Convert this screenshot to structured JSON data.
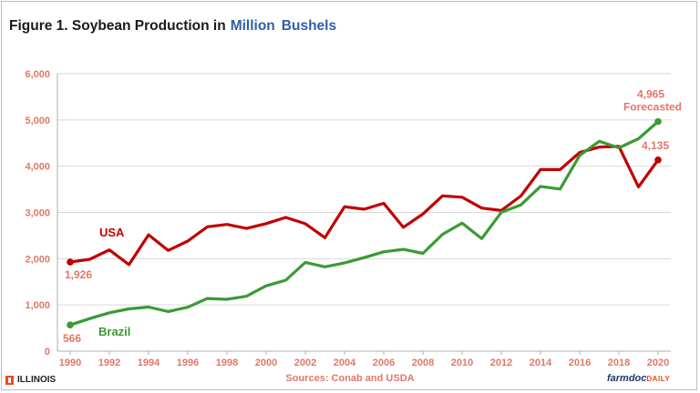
{
  "title": {
    "prefix": "Figure 1. Soybean Production in",
    "highlight1": "Million",
    "highlight2": "Bushels"
  },
  "footer": {
    "logo_text": "ILLINOIS",
    "source": "Sources: Conab and USDA",
    "brand_main": "farmdoc",
    "brand_suffix": "DAILY"
  },
  "colors": {
    "usa": "#c00000",
    "brazil": "#3a9a35",
    "axis_text": "#e0776a",
    "grid": "#d9d9d9",
    "axis": "#b0b0b0"
  },
  "chart_data": {
    "type": "line",
    "x": [
      1990,
      1991,
      1992,
      1993,
      1994,
      1995,
      1996,
      1997,
      1998,
      1999,
      2000,
      2001,
      2002,
      2003,
      2004,
      2005,
      2006,
      2007,
      2008,
      2009,
      2010,
      2011,
      2012,
      2013,
      2014,
      2015,
      2016,
      2017,
      2018,
      2019,
      2020
    ],
    "xticks": [
      "1990",
      "1992",
      "1994",
      "1996",
      "1998",
      "2000",
      "2002",
      "2004",
      "2006",
      "2008",
      "2010",
      "2012",
      "2014",
      "2016",
      "2018",
      "2020"
    ],
    "yticks": [
      "0",
      "1,000",
      "2,000",
      "3,000",
      "4,000",
      "5,000",
      "6,000"
    ],
    "ylim": [
      0,
      6000
    ],
    "xlim": [
      1990,
      2020
    ],
    "grid": true,
    "series": [
      {
        "name": "USA",
        "values": [
          1926,
          1987,
          2190,
          1870,
          2517,
          2177,
          2380,
          2689,
          2741,
          2654,
          2758,
          2891,
          2756,
          2454,
          3124,
          3068,
          3197,
          2677,
          2967,
          3359,
          3329,
          3094,
          3042,
          3357,
          3927,
          3926,
          4296,
          4412,
          4428,
          3552,
          4135
        ]
      },
      {
        "name": "Brazil",
        "values": [
          566,
          705,
          830,
          915,
          954,
          858,
          950,
          1139,
          1122,
          1188,
          1413,
          1535,
          1920,
          1823,
          1909,
          2022,
          2148,
          2201,
          2114,
          2526,
          2769,
          2434,
          3001,
          3163,
          3562,
          3505,
          4234,
          4538,
          4397,
          4594,
          4965
        ]
      }
    ],
    "annotations": [
      {
        "text": "1,926",
        "x": 1990,
        "y": 1926,
        "series": "USA"
      },
      {
        "text": "566",
        "x": 1990,
        "y": 566,
        "series": "USA"
      },
      {
        "text": "4,965",
        "x": 2020,
        "y": 4965,
        "series": "USA"
      },
      {
        "text": "Forecasted",
        "x": 2020,
        "y": 4965,
        "series": "USA"
      },
      {
        "text": "4,135",
        "x": 2020,
        "y": 4135,
        "series": "USA"
      }
    ],
    "series_labels": [
      {
        "text": "USA",
        "series": "USA"
      },
      {
        "text": "Brazil",
        "series": "Brazil"
      }
    ]
  }
}
